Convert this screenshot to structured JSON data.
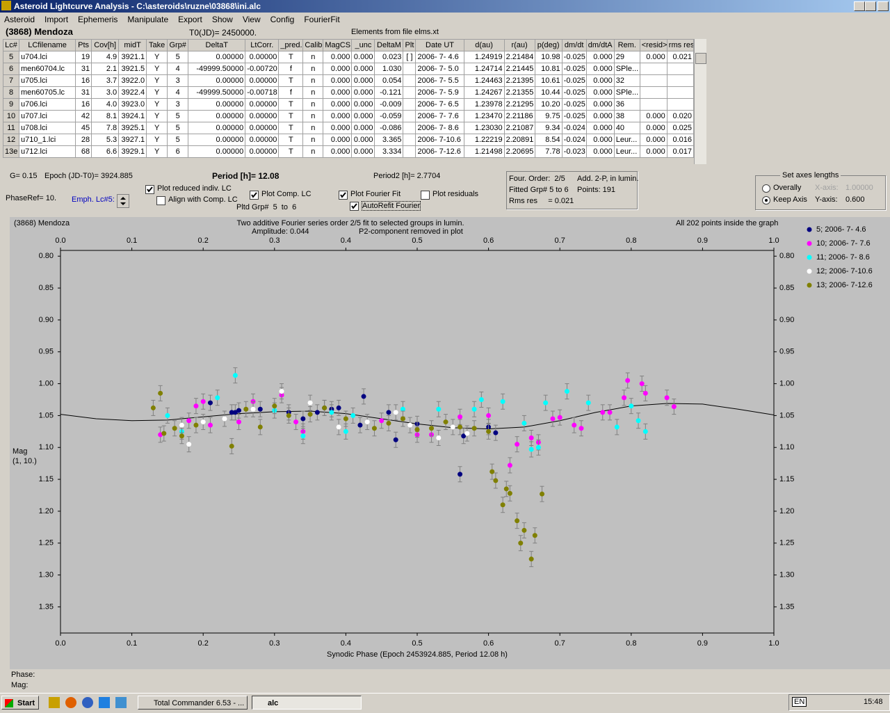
{
  "window": {
    "title": "Asteroid Lightcurve Analysis - C:\\asteroids\\ruzne\\03868\\ini.alc",
    "menu": [
      "Asteroid",
      "Import",
      "Ephemeris",
      "Manipulate",
      "Export",
      "Show",
      "View",
      "Config",
      "FourierFit"
    ]
  },
  "header": {
    "object": "(3868) Mendoza",
    "t0": "T0(JD)= 2450000.",
    "elements": "Elements from file elms.xt"
  },
  "table": {
    "columns": [
      "Lc#",
      "LCfilename",
      "Pts",
      "Cov[h]",
      "midT",
      "Take",
      "Grp#",
      "DeltaT",
      "LtCorr.",
      "_pred.",
      "Calib.",
      "MagCS",
      "_unc",
      "DeltaM",
      "Plt",
      "Date UT",
      "d(au)",
      "r(au)",
      "p(deg)",
      "dm/dt",
      "dm/dtA",
      "Rem.",
      "<resid>",
      "rms res"
    ],
    "rows": [
      [
        "5",
        "u704.lci",
        "19",
        "4.9",
        "3921.1",
        "Y",
        "5",
        "0.00000",
        "0.00000",
        "T",
        "n",
        "0.000",
        "0.000",
        "0.023",
        "[ ]",
        "2006- 7- 4.6",
        "1.24919",
        "2.21484",
        "10.98",
        "-0.025",
        "0.000",
        "29",
        "0.000",
        "0.021"
      ],
      [
        "6",
        "men60704.lc",
        "31",
        "2.1",
        "3921.5",
        "Y",
        "4",
        "-49999.50000",
        "-0.00720",
        "f",
        "n",
        "0.000",
        "0.000",
        "1.030",
        null,
        "2006- 7- 5.0",
        "1.24714",
        "2.21445",
        "10.81",
        "-0.025",
        "0.000",
        "SPle...",
        null,
        null
      ],
      [
        "7",
        "u705.lci",
        "16",
        "3.7",
        "3922.0",
        "Y",
        "3",
        "0.00000",
        "0.00000",
        "T",
        "n",
        "0.000",
        "0.000",
        "0.054",
        null,
        "2006- 7- 5.5",
        "1.24463",
        "2.21395",
        "10.61",
        "-0.025",
        "0.000",
        "32",
        null,
        null
      ],
      [
        "8",
        "men60705.lc",
        "31",
        "3.0",
        "3922.4",
        "Y",
        "4",
        "-49999.50000",
        "-0.00718",
        "f",
        "n",
        "0.000",
        "0.000",
        "-0.121",
        null,
        "2006- 7- 5.9",
        "1.24267",
        "2.21355",
        "10.44",
        "-0.025",
        "0.000",
        "SPle...",
        null,
        null
      ],
      [
        "9",
        "u706.lci",
        "16",
        "4.0",
        "3923.0",
        "Y",
        "3",
        "0.00000",
        "0.00000",
        "T",
        "n",
        "0.000",
        "0.000",
        "-0.009",
        null,
        "2006- 7- 6.5",
        "1.23978",
        "2.21295",
        "10.20",
        "-0.025",
        "0.000",
        "36",
        null,
        null
      ],
      [
        "10",
        "u707.lci",
        "42",
        "8.1",
        "3924.1",
        "Y",
        "5",
        "0.00000",
        "0.00000",
        "T",
        "n",
        "0.000",
        "0.000",
        "-0.059",
        null,
        "2006- 7- 7.6",
        "1.23470",
        "2.21186",
        "9.75",
        "-0.025",
        "0.000",
        "38",
        "0.000",
        "0.020"
      ],
      [
        "11",
        "u708.lci",
        "45",
        "7.8",
        "3925.1",
        "Y",
        "5",
        "0.00000",
        "0.00000",
        "T",
        "n",
        "0.000",
        "0.000",
        "-0.086",
        null,
        "2006- 7- 8.6",
        "1.23030",
        "2.21087",
        "9.34",
        "-0.024",
        "0.000",
        "40",
        "0.000",
        "0.025"
      ],
      [
        "12",
        "u710_1.lci",
        "28",
        "5.3",
        "3927.1",
        "Y",
        "5",
        "0.00000",
        "0.00000",
        "T",
        "n",
        "0.000",
        "0.000",
        "3.365",
        null,
        "2006- 7-10.6",
        "1.22219",
        "2.20891",
        "8.54",
        "-0.024",
        "0.000",
        "Leur...",
        "0.000",
        "0.016"
      ],
      [
        "13e",
        "u712.lci",
        "68",
        "6.6",
        "3929.1",
        "Y",
        "6",
        "0.00000",
        "0.00000",
        "T",
        "n",
        "0.000",
        "0.000",
        "3.334",
        null,
        "2006- 7-12.6",
        "1.21498",
        "2.20695",
        "7.78",
        "-0.023",
        "0.000",
        "Leur...",
        "0.000",
        "0.017"
      ]
    ]
  },
  "controls": {
    "g": "G= 0.15",
    "epoch": "Epoch (JD-T0)= 3924.885",
    "period": "Period [h]= 12.08",
    "period2": "Period2 [h]= 2.7704",
    "phase_ref": "PhaseRef= 10.",
    "emph": "Emph. Lc#5:",
    "pltd_grp": "Pltd Grp#  5  to  6",
    "checkboxes": [
      {
        "label": "Plot reduced indiv. LC",
        "checked": true
      },
      {
        "label": "Align with Comp. LC",
        "checked": false
      },
      {
        "label": "Plot Comp. LC",
        "checked": true
      },
      {
        "label": "Plot Fourier Fit",
        "checked": true
      },
      {
        "label": "Plot residuals",
        "checked": false
      },
      {
        "label": "AutoRefit Fourier",
        "checked": true
      }
    ]
  },
  "fit_info": [
    "Four. Order:  2/5",
    "Add. 2-P, in lumin.",
    "Fitted Grp# 5 to 6",
    "Points: 191",
    "Rms res     = 0.021"
  ],
  "axes_box": {
    "title": "Set axes lengths",
    "radios": [
      {
        "label": "Overally",
        "checked": false
      },
      {
        "label": "Keep Axis",
        "checked": true
      }
    ],
    "x_label": "X-axis:",
    "x_value": "1.00000",
    "y_label": "Y-axis:",
    "y_value": "0.600"
  },
  "chart_data": {
    "type": "scatter",
    "title": "(3868) Mendoza",
    "subtitle": "Two additive Fourier series order 2/5 fit to selected groups in lumin.",
    "annotations": [
      "Amplitude: 0.044",
      "P2-component removed in plot",
      "All 202 points inside the graph"
    ],
    "xlabel": "Synodic Phase (Epoch 2453924.885, Period 12.08 h)",
    "ylabel": [
      "Mag",
      "(1, 10.)"
    ],
    "xlim": [
      0,
      1
    ],
    "xticks": [
      {
        "value": 0,
        "label": "0.0"
      },
      0.1,
      0.2,
      0.3,
      0.4,
      0.5,
      0.6,
      0.7,
      0.8,
      0.9,
      {
        "value": 1,
        "label": "1.0"
      }
    ],
    "ylim": [
      0.791,
      1.391
    ],
    "y_inverted": true,
    "yticks": [
      {
        "value": 0.8,
        "label": "0.80"
      },
      0.85,
      {
        "value": 0.9,
        "label": "0.90"
      },
      0.95,
      {
        "value": 1,
        "label": "1.00"
      },
      1.05,
      {
        "value": 1.1,
        "label": "1.10"
      },
      1.15,
      {
        "value": 1.2,
        "label": "1.20"
      },
      1.25,
      {
        "value": 1.3,
        "label": "1.30"
      },
      1.35
    ],
    "error": 0.012,
    "error_color": "#808080",
    "series": [
      {
        "name": "5; 2006- 7- 4.6",
        "color": "#000080",
        "x": [
          0.21,
          0.24,
          0.245,
          0.25,
          0.28,
          0.32,
          0.34,
          0.36,
          0.37,
          0.38,
          0.39,
          0.42,
          0.425,
          0.46,
          0.47,
          0.5,
          0.56,
          0.565,
          0.6,
          0.61
        ],
        "values": [
          1.03,
          1.045,
          1.045,
          1.042,
          1.04,
          1.045,
          1.055,
          1.045,
          1.038,
          1.04,
          1.038,
          1.065,
          1.02,
          1.045,
          1.088,
          1.063,
          1.142,
          1.082,
          1.068,
          1.077
        ]
      },
      {
        "name": "10; 2006- 7- 7.6",
        "color": "#ff00ff",
        "x": [
          0.14,
          0.18,
          0.19,
          0.2,
          0.21,
          0.25,
          0.27,
          0.31,
          0.33,
          0.34,
          0.45,
          0.5,
          0.52,
          0.56,
          0.6,
          0.63,
          0.64,
          0.66,
          0.67,
          0.69,
          0.7,
          0.72,
          0.73,
          0.76,
          0.77,
          0.79,
          0.795,
          0.815,
          0.82,
          0.85,
          0.86
        ],
        "values": [
          1.08,
          1.058,
          1.035,
          1.028,
          1.065,
          1.06,
          1.028,
          1.018,
          1.06,
          1.075,
          1.058,
          1.08,
          1.08,
          1.052,
          1.05,
          1.128,
          1.095,
          1.085,
          1.092,
          1.055,
          1.053,
          1.065,
          1.07,
          1.045,
          1.045,
          1.022,
          0.995,
          1.0,
          1.015,
          1.022,
          1.036
        ]
      },
      {
        "name": "11; 2006- 7- 8.6",
        "color": "#00ffff",
        "x": [
          0.15,
          0.17,
          0.22,
          0.245,
          0.3,
          0.34,
          0.38,
          0.4,
          0.41,
          0.48,
          0.53,
          0.58,
          0.59,
          0.62,
          0.65,
          0.66,
          0.67,
          0.68,
          0.71,
          0.74,
          0.78,
          0.8,
          0.81,
          0.82
        ],
        "values": [
          1.05,
          1.075,
          1.022,
          0.987,
          1.042,
          1.082,
          1.045,
          1.075,
          1.05,
          1.04,
          1.04,
          1.04,
          1.025,
          1.028,
          1.062,
          1.103,
          1.1,
          1.03,
          1.012,
          1.03,
          1.068,
          1.035,
          1.058,
          1.075
        ]
      },
      {
        "name": "12; 2006- 7-10.6",
        "color": "#ffffff",
        "x": [
          0.17,
          0.18,
          0.2,
          0.23,
          0.27,
          0.31,
          0.35,
          0.39,
          0.43,
          0.47,
          0.49,
          0.53,
          0.55,
          0.57
        ],
        "values": [
          1.065,
          1.095,
          1.06,
          1.055,
          1.04,
          1.012,
          1.03,
          1.068,
          1.06,
          1.045,
          1.065,
          1.085,
          1.068,
          1.078
        ]
      },
      {
        "name": "13; 2006- 7-12.6",
        "color": "#808000",
        "x": [
          0.13,
          0.14,
          0.145,
          0.16,
          0.17,
          0.19,
          0.24,
          0.26,
          0.28,
          0.3,
          0.32,
          0.35,
          0.37,
          0.4,
          0.44,
          0.46,
          0.48,
          0.5,
          0.52,
          0.54,
          0.56,
          0.58,
          0.6,
          0.605,
          0.61,
          0.62,
          0.625,
          0.63,
          0.64,
          0.645,
          0.65,
          0.66,
          0.665,
          0.675
        ],
        "values": [
          1.038,
          1.015,
          1.078,
          1.07,
          1.082,
          1.065,
          1.098,
          1.04,
          1.068,
          1.035,
          1.05,
          1.048,
          1.038,
          1.055,
          1.07,
          1.062,
          1.055,
          1.072,
          1.07,
          1.06,
          1.068,
          1.07,
          1.075,
          1.138,
          1.152,
          1.19,
          1.165,
          1.172,
          1.215,
          1.25,
          1.23,
          1.275,
          1.238,
          1.173
        ]
      }
    ],
    "fit_curve": {
      "color": "#000000",
      "x": [
        0,
        0.05,
        0.1,
        0.15,
        0.2,
        0.25,
        0.3,
        0.35,
        0.4,
        0.45,
        0.5,
        0.55,
        0.6,
        0.65,
        0.7,
        0.75,
        0.8,
        0.85,
        0.9,
        0.95,
        1
      ],
      "values": [
        1.048,
        1.055,
        1.058,
        1.057,
        1.052,
        1.047,
        1.044,
        1.043,
        1.047,
        1.055,
        1.063,
        1.069,
        1.071,
        1.068,
        1.058,
        1.045,
        1.035,
        1.031,
        1.032,
        1.04,
        1.049
      ]
    }
  },
  "status": {
    "phase": "Phase:",
    "mag": "Mag:"
  },
  "taskbar": {
    "start": "Start",
    "tasks": [
      "Total Commander 6.53 - ...",
      "alc"
    ],
    "language": "EN",
    "clock": "15:48"
  }
}
